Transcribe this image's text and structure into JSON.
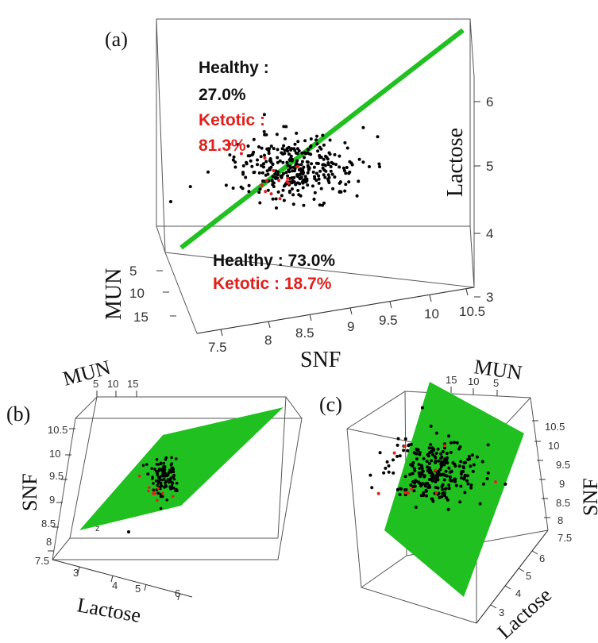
{
  "chart_data": [
    {
      "panel": "(a)",
      "type": "scatter",
      "view": "3d",
      "axes": {
        "x": {
          "label": "SNF",
          "ticks": [
            "7.5",
            "8",
            "8.5",
            "9",
            "9.5",
            "10",
            "10.5"
          ],
          "range": [
            7.5,
            10.5
          ]
        },
        "y": {
          "label": "MUN",
          "ticks": [
            "5",
            "10",
            "15"
          ],
          "range": [
            5,
            15
          ]
        },
        "z": {
          "label": "Lactose",
          "ticks": [
            "3",
            "4",
            "5",
            "6"
          ],
          "range": [
            3,
            6
          ]
        }
      },
      "series": [
        {
          "class": "healthy",
          "color": "#000000",
          "center": {
            "snf": 8.9,
            "mun": 11,
            "lactose": 4.95
          },
          "count": 330
        },
        {
          "class": "ketotic",
          "color": "#e0201c",
          "center": {
            "snf": 8.6,
            "mun": 11,
            "lactose": 4.95
          },
          "count": 14
        }
      ],
      "plane_color": "#21c021",
      "annotations": {
        "upper": {
          "healthy_label": "Healthy :",
          "healthy_value": "27.0%",
          "ketotic_label": "Ketotic :",
          "ketotic_value": "81.3%"
        },
        "lower": {
          "healthy": "Healthy : 73.0%",
          "ketotic": "Ketotic : 18.7%"
        }
      }
    },
    {
      "panel": "(b)",
      "type": "scatter",
      "view": "3d",
      "axes": {
        "x": {
          "label": "Lactose",
          "ticks": [
            "3",
            "4",
            "5",
            "6"
          ],
          "range": [
            3,
            6
          ]
        },
        "y": {
          "label": "MUN",
          "ticks": [
            "5",
            "10",
            "15"
          ],
          "range": [
            5,
            15
          ]
        },
        "z": {
          "label": "SNF",
          "ticks": [
            "7.5",
            "8",
            "8.5",
            "9",
            "9.5",
            "10",
            "10.5"
          ],
          "range": [
            7.5,
            10.5
          ]
        }
      },
      "corner_label": "z",
      "plane_color": "#21c021"
    },
    {
      "panel": "(c)",
      "type": "scatter",
      "view": "3d",
      "axes": {
        "x": {
          "label": "Lactose",
          "ticks": [
            "3",
            "4",
            "5",
            "6"
          ],
          "range": [
            3,
            6
          ]
        },
        "y": {
          "label": "MUN",
          "ticks": [
            "15",
            "10",
            "5"
          ],
          "range": [
            5,
            15
          ]
        },
        "z": {
          "label": "SNF",
          "ticks": [
            "7.5",
            "8",
            "8.5",
            "9",
            "9.5",
            "10",
            "10.5"
          ],
          "range": [
            7.5,
            10.5
          ]
        }
      },
      "plane_color": "#21c021"
    }
  ]
}
